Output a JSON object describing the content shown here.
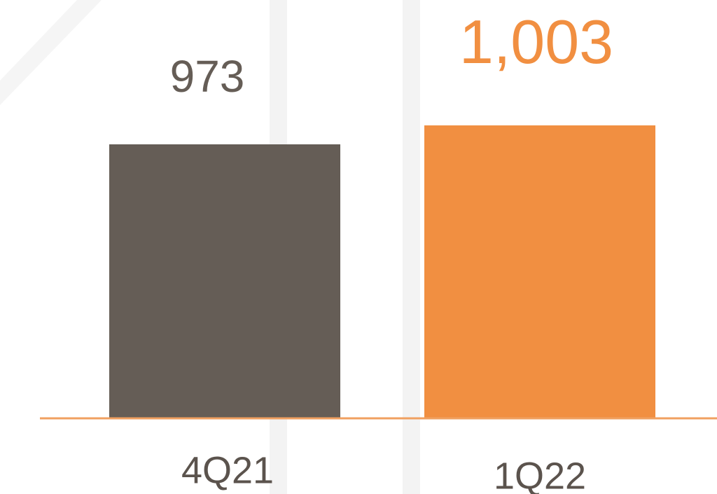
{
  "chart_data": {
    "type": "bar",
    "categories": [
      "4Q21",
      "1Q22"
    ],
    "values": [
      973,
      1003
    ],
    "value_labels": [
      "973",
      "1,003"
    ],
    "colors": [
      "#655d56",
      "#f18f41"
    ],
    "axis_color": "#f0a060",
    "ylim": [
      540,
      1200
    ]
  }
}
